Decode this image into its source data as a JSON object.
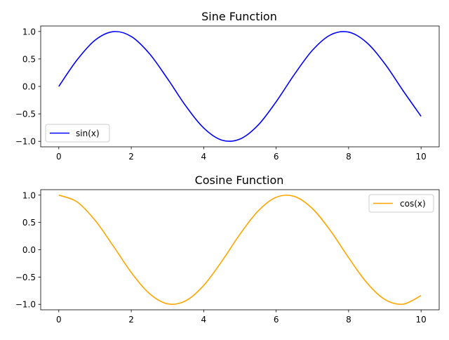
{
  "chart_data": [
    {
      "type": "line",
      "title": "Sine Function",
      "xlabel": "",
      "ylabel": "",
      "xlim": [
        -0.5,
        10.5
      ],
      "ylim": [
        -1.1,
        1.1
      ],
      "xticks": [
        0,
        2,
        4,
        6,
        8,
        10
      ],
      "xtick_labels": [
        "0",
        "2",
        "4",
        "6",
        "8",
        "10"
      ],
      "yticks": [
        -1.0,
        -0.5,
        0.0,
        0.5,
        1.0
      ],
      "ytick_labels": [
        "−1.0",
        "−0.5",
        "0.0",
        "0.5",
        "1.0"
      ],
      "grid": false,
      "legend_position": "lower-left",
      "series": [
        {
          "name": "sin(x)",
          "color": "#0000ff",
          "x": [
            0,
            0.5,
            1,
            1.5,
            2,
            2.5,
            3,
            3.5,
            4,
            4.5,
            5,
            5.5,
            6,
            6.5,
            7,
            7.5,
            8,
            8.5,
            9,
            9.5,
            10
          ],
          "y": [
            0,
            0.479,
            0.841,
            0.997,
            0.909,
            0.598,
            0.141,
            -0.351,
            -0.757,
            -0.978,
            -0.959,
            -0.706,
            -0.279,
            0.215,
            0.657,
            0.938,
            0.989,
            0.798,
            0.412,
            -0.075,
            -0.544
          ]
        }
      ]
    },
    {
      "type": "line",
      "title": "Cosine Function",
      "xlabel": "",
      "ylabel": "",
      "xlim": [
        -0.5,
        10.5
      ],
      "ylim": [
        -1.1,
        1.1
      ],
      "xticks": [
        0,
        2,
        4,
        6,
        8,
        10
      ],
      "xtick_labels": [
        "0",
        "2",
        "4",
        "6",
        "8",
        "10"
      ],
      "yticks": [
        -1.0,
        -0.5,
        0.0,
        0.5,
        1.0
      ],
      "ytick_labels": [
        "−1.0",
        "−0.5",
        "0.0",
        "0.5",
        "1.0"
      ],
      "grid": false,
      "legend_position": "upper-right",
      "series": [
        {
          "name": "cos(x)",
          "color": "#ffa500",
          "x": [
            0,
            0.5,
            1,
            1.5,
            2,
            2.5,
            3,
            3.5,
            4,
            4.5,
            5,
            5.5,
            6,
            6.5,
            7,
            7.5,
            8,
            8.5,
            9,
            9.5,
            10
          ],
          "y": [
            1,
            0.878,
            0.54,
            0.071,
            -0.416,
            -0.801,
            -0.99,
            -0.936,
            -0.654,
            -0.211,
            0.284,
            0.709,
            0.96,
            0.977,
            0.754,
            0.347,
            -0.146,
            -0.602,
            -0.911,
            -0.997,
            -0.839
          ]
        }
      ]
    }
  ]
}
